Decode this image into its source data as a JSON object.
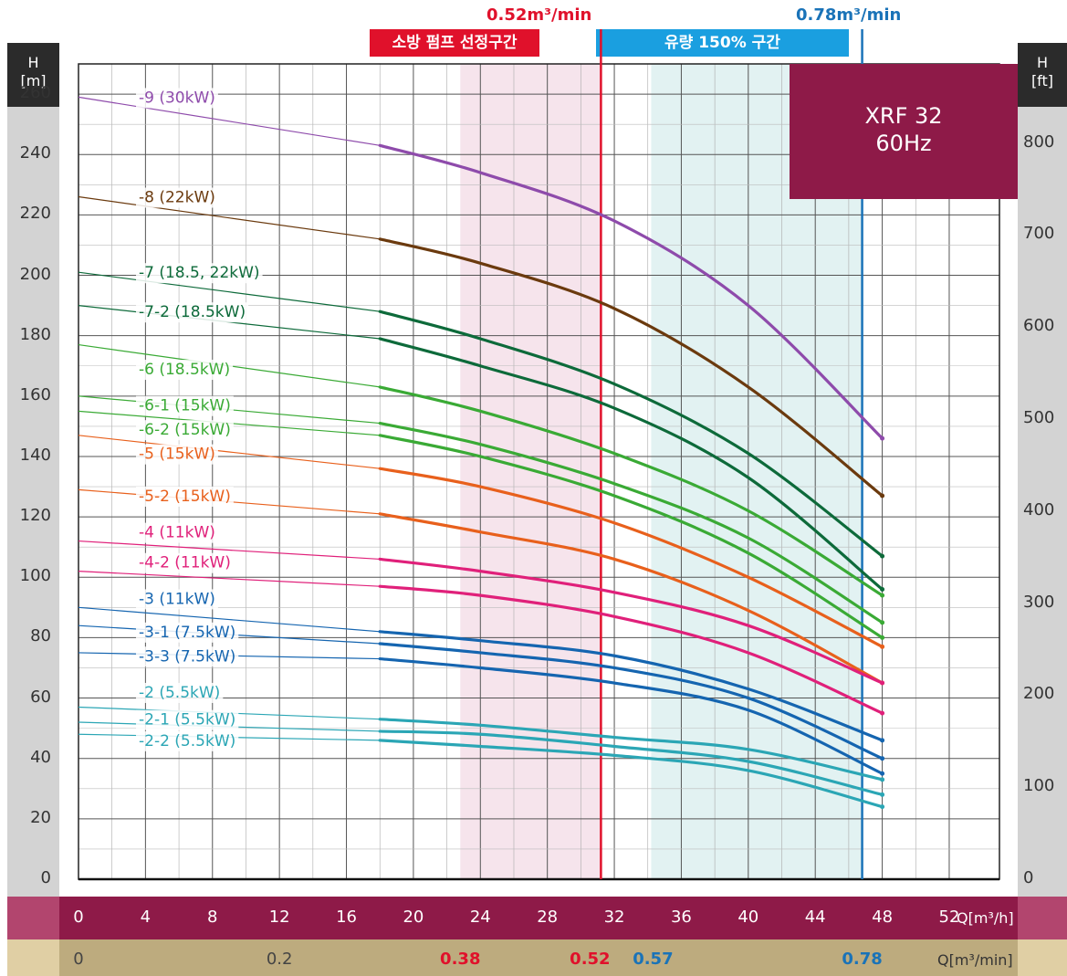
{
  "axes": {
    "left_title": [
      "H",
      "[m]"
    ],
    "right_title": [
      "H",
      "[ft]"
    ],
    "left_ticks": [
      "260",
      "240",
      "220",
      "200",
      "180",
      "160",
      "140",
      "120",
      "100",
      "80",
      "60",
      "40",
      "20",
      "0"
    ],
    "right_ticks": [
      "800",
      "700",
      "600",
      "500",
      "400",
      "300",
      "200",
      "100",
      "0"
    ],
    "x_ticks": [
      "0",
      "4",
      "8",
      "12",
      "16",
      "20",
      "24",
      "28",
      "32",
      "36",
      "40",
      "44",
      "48",
      "52"
    ],
    "x_unit": "Q[m³/h]",
    "x2_ticks": [
      {
        "label": "0",
        "style": "plain"
      },
      {
        "label": "0.2",
        "style": "plain"
      },
      {
        "label": "0.38",
        "style": "red"
      },
      {
        "label": "0.52",
        "style": "red"
      },
      {
        "label": "0.57",
        "style": "blue"
      },
      {
        "label": "0.78",
        "style": "blue"
      }
    ],
    "x2_unit": "Q[m³/min]"
  },
  "bands": {
    "fire": {
      "label": "소방 펌프 선정구간",
      "flow_label": "0.52m³/min",
      "color": "#e0112b"
    },
    "flow150": {
      "label": "유량 150% 구간",
      "flow_label": "0.78m³/min",
      "color": "#1a8fd6"
    }
  },
  "model": {
    "name": "XRF 32",
    "freq": "60Hz"
  },
  "colors": {
    "purple": "#8e4bab",
    "brown": "#6b3a0e",
    "darkgreen": "#0d6a3a",
    "green": "#3aaa35",
    "orange": "#e8601c",
    "pink": "#e0207a",
    "blue": "#1565b0",
    "teal": "#2ba6b5"
  },
  "chart_data": {
    "type": "line",
    "xlabel": "Q[m³/h]",
    "ylabel": "H [m]",
    "xlim": [
      0,
      55
    ],
    "ylim": [
      0,
      270
    ],
    "grid": true,
    "series": [
      {
        "name": "-9 (30kW)",
        "color": "purple",
        "x": [
          0,
          18,
          24,
          32,
          40,
          48
        ],
        "y": [
          259,
          243,
          234,
          218,
          190,
          146
        ]
      },
      {
        "name": "-8 (22kW)",
        "color": "brown",
        "x": [
          0,
          18,
          24,
          32,
          40,
          48
        ],
        "y": [
          226,
          212,
          204,
          189,
          163,
          127
        ]
      },
      {
        "name": "-7 (18.5, 22kW)",
        "color": "darkgreen",
        "x": [
          0,
          18,
          24,
          32,
          40,
          48
        ],
        "y": [
          201,
          188,
          179,
          164,
          141,
          107
        ]
      },
      {
        "name": "-7-2 (18.5kW)",
        "color": "darkgreen",
        "x": [
          0,
          18,
          24,
          32,
          40,
          48
        ],
        "y": [
          190,
          179,
          170,
          156,
          133,
          96
        ]
      },
      {
        "name": "-6 (18.5kW)",
        "color": "green",
        "x": [
          0,
          18,
          24,
          32,
          40,
          48
        ],
        "y": [
          177,
          163,
          155,
          141,
          122,
          94
        ]
      },
      {
        "name": "-6-1 (15kW)",
        "color": "green",
        "x": [
          0,
          18,
          24,
          32,
          40,
          48
        ],
        "y": [
          160,
          151,
          144,
          131,
          113,
          85
        ]
      },
      {
        "name": "-6-2 (15kW)",
        "color": "green",
        "x": [
          0,
          18,
          24,
          32,
          40,
          48
        ],
        "y": [
          155,
          147,
          140,
          127,
          108,
          80
        ]
      },
      {
        "name": "-5 (15kW)",
        "color": "orange",
        "x": [
          0,
          18,
          24,
          32,
          40,
          48
        ],
        "y": [
          147,
          136,
          130,
          118,
          100,
          77
        ]
      },
      {
        "name": "-5-2 (15kW)",
        "color": "orange",
        "x": [
          0,
          18,
          24,
          32,
          40,
          48
        ],
        "y": [
          129,
          121,
          115,
          106,
          89,
          65
        ]
      },
      {
        "name": "-4 (11kW)",
        "color": "pink",
        "x": [
          0,
          18,
          24,
          32,
          40,
          48
        ],
        "y": [
          112,
          106,
          102,
          95,
          84,
          65
        ]
      },
      {
        "name": "-4-2 (11kW)",
        "color": "pink",
        "x": [
          0,
          18,
          24,
          32,
          40,
          48
        ],
        "y": [
          102,
          97,
          94,
          87,
          75,
          55
        ]
      },
      {
        "name": "-3 (11kW)",
        "color": "blue",
        "x": [
          0,
          18,
          24,
          32,
          40,
          48
        ],
        "y": [
          90,
          82,
          79,
          74,
          63,
          46
        ]
      },
      {
        "name": "-3-1 (7.5kW)",
        "color": "blue",
        "x": [
          0,
          18,
          24,
          32,
          40,
          48
        ],
        "y": [
          84,
          78,
          75,
          70,
          60,
          40
        ]
      },
      {
        "name": "-3-3 (7.5kW)",
        "color": "blue",
        "x": [
          0,
          18,
          24,
          32,
          40,
          48
        ],
        "y": [
          75,
          73,
          70,
          65,
          56,
          35
        ]
      },
      {
        "name": "-2 (5.5kW)",
        "color": "teal",
        "x": [
          0,
          18,
          24,
          32,
          40,
          48
        ],
        "y": [
          57,
          53,
          51,
          47,
          43,
          33
        ]
      },
      {
        "name": "-2-1 (5.5kW)",
        "color": "teal",
        "x": [
          0,
          18,
          24,
          32,
          40,
          48
        ],
        "y": [
          52,
          49,
          48,
          44,
          39,
          28
        ]
      },
      {
        "name": "-2-2 (5.5kW)",
        "color": "teal",
        "x": [
          0,
          18,
          24,
          32,
          40,
          48
        ],
        "y": [
          48,
          46,
          44,
          41,
          36,
          24
        ]
      }
    ],
    "label_positions_y": [
      259,
      226,
      201,
      188,
      169,
      157,
      149,
      141,
      127,
      115,
      105,
      93,
      82,
      74,
      62,
      53,
      46
    ],
    "fire_band_q": [
      22.8,
      31.2
    ],
    "flow150_band_q": [
      34.2,
      46.8
    ]
  }
}
